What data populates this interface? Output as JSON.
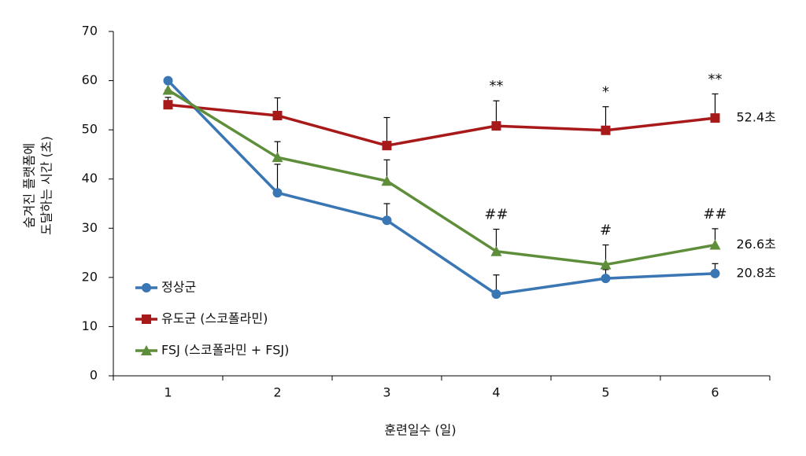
{
  "chart_data": {
    "type": "line",
    "x_label": "훈련일수 (일)",
    "y_label": [
      "숨겨진 플랫폼에",
      "도달하는 시간 (초)"
    ],
    "categories": [
      "1",
      "2",
      "3",
      "4",
      "5",
      "6"
    ],
    "ylim": [
      0,
      70
    ],
    "yticks": [
      0,
      10,
      20,
      30,
      40,
      50,
      60,
      70
    ],
    "grid": false,
    "legend": "lower-left",
    "series": [
      {
        "name": "정상군",
        "color": "#3a76b4",
        "marker": "circle",
        "values": [
          60,
          37.2,
          31.6,
          16.6,
          19.8,
          20.8
        ],
        "errors": [
          0,
          5.8,
          3.4,
          3.9,
          1.8,
          2.0
        ],
        "value_labels": [
          null,
          null,
          null,
          null,
          null,
          "20.8초"
        ]
      },
      {
        "name": "유도군 (스코폴라민)",
        "color": "#a8191a",
        "marker": "square",
        "values": [
          55.1,
          52.9,
          46.8,
          50.8,
          49.9,
          52.4
        ],
        "errors": [
          1.5,
          3.6,
          5.7,
          5.1,
          4.8,
          4.9
        ],
        "value_labels": [
          null,
          null,
          null,
          null,
          null,
          "52.4초"
        ],
        "significance": [
          null,
          null,
          null,
          "**",
          "*",
          "**"
        ]
      },
      {
        "name": "FSJ (스코폴라민 + FSJ)",
        "color": "#5e8e3a",
        "marker": "triangle",
        "values": [
          58.1,
          44.4,
          39.6,
          25.3,
          22.6,
          26.6
        ],
        "errors": [
          0,
          3.2,
          4.3,
          4.5,
          4.0,
          3.3
        ],
        "value_labels": [
          null,
          null,
          null,
          null,
          null,
          "26.6초"
        ],
        "significance": [
          null,
          null,
          null,
          "##",
          "#",
          "##"
        ]
      }
    ]
  }
}
